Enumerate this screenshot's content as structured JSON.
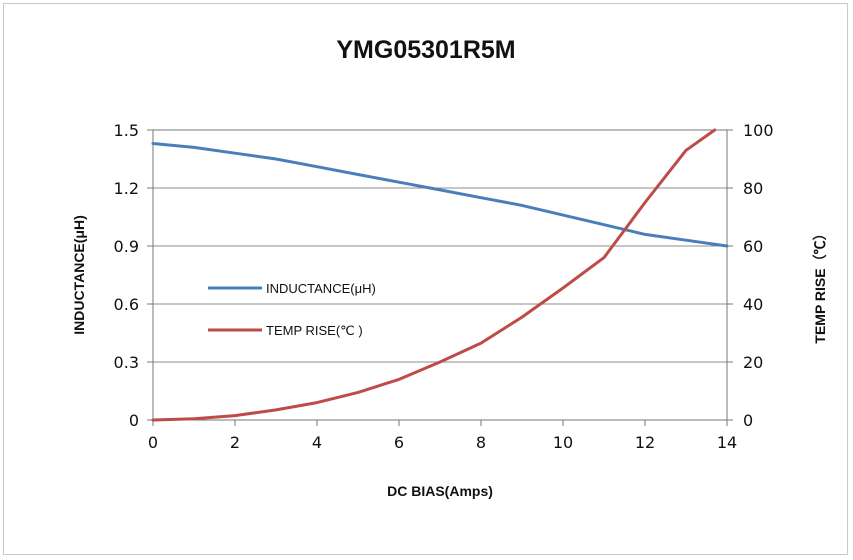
{
  "chart_data": {
    "type": "line",
    "title": "YMG05301R5M",
    "xlabel": "DC BIAS(Amps)",
    "ylabel_left": "INDUCTANCE(μH)",
    "ylabel_right": "TEMP RISE（℃）",
    "xlim": [
      0,
      14
    ],
    "ylim_left": [
      0,
      1.5
    ],
    "ylim_right": [
      0,
      100
    ],
    "x_ticks": [
      0,
      2,
      4,
      6,
      8,
      10,
      12,
      14
    ],
    "y_left_ticks": [
      "0",
      "0.3",
      "0.6",
      "0.9",
      "1.2",
      "1.5"
    ],
    "y_right_ticks": [
      "0",
      "20",
      "40",
      "60",
      "80",
      "100"
    ],
    "grid": true,
    "legend_position": "center-left",
    "series": [
      {
        "name": "INDUCTANCE(μH)",
        "axis": "left",
        "color": "#4a7ebb",
        "x": [
          0,
          1,
          2,
          3,
          4,
          5,
          6,
          7,
          8,
          9,
          10,
          11,
          12,
          13,
          14
        ],
        "y": [
          1.43,
          1.41,
          1.38,
          1.35,
          1.31,
          1.27,
          1.23,
          1.19,
          1.15,
          1.11,
          1.06,
          1.01,
          0.96,
          0.93,
          0.9
        ]
      },
      {
        "name": "TEMP RISE(℃ )",
        "axis": "right",
        "color": "#be4b48",
        "x": [
          0,
          1,
          2,
          3,
          4,
          5,
          6,
          7,
          8,
          9,
          10,
          11,
          12,
          13,
          13.7
        ],
        "y": [
          0,
          0.4,
          1.5,
          3.5,
          6,
          9.5,
          14,
          20,
          26.5,
          35.5,
          45.5,
          56,
          75,
          93,
          100
        ]
      }
    ]
  }
}
